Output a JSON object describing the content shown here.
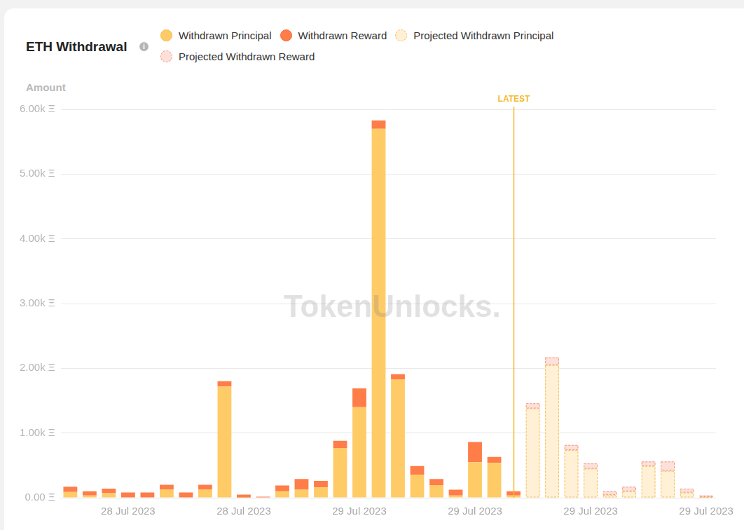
{
  "chart_data": {
    "type": "bar",
    "title": "ETH Withdrawal",
    "y_label": "Amount",
    "watermark": "TokenUnlocks.",
    "stacked": true,
    "grid": true,
    "legend": "top",
    "categories": [
      null,
      null,
      null,
      "28 Jul 2023",
      null,
      null,
      null,
      null,
      null,
      "28 Jul 2023",
      null,
      null,
      null,
      null,
      null,
      "29 Jul 2023",
      null,
      null,
      null,
      null,
      null,
      "29 Jul 2023",
      null,
      null,
      null,
      null,
      null,
      "29 Jul 2023",
      null,
      null,
      null,
      null,
      null,
      "29 Jul 2023"
    ],
    "series": [
      {
        "name": "Withdrawn Principal",
        "color": "#fecb67",
        "line_style": "solid",
        "values": [
          90,
          35,
          70,
          5,
          5,
          125,
          5,
          125,
          1720,
          2,
          0,
          100,
          125,
          160,
          770,
          1400,
          5700,
          1830,
          355,
          195,
          35,
          550,
          540,
          35,
          null,
          null,
          null,
          null,
          null,
          null,
          null,
          null,
          null,
          null
        ]
      },
      {
        "name": "Withdrawn Reward",
        "color": "#fe7d48",
        "line_style": "solid",
        "values": [
          80,
          65,
          70,
          75,
          75,
          75,
          75,
          75,
          80,
          48,
          15,
          90,
          165,
          100,
          110,
          290,
          130,
          80,
          135,
          95,
          90,
          310,
          90,
          65,
          null,
          null,
          null,
          null,
          null,
          null,
          null,
          null,
          null,
          null
        ]
      },
      {
        "name": "Projected Withdrawn Principal",
        "color": "#fff0d6",
        "line_style": "dashed",
        "values": [
          null,
          null,
          null,
          null,
          null,
          null,
          null,
          null,
          null,
          null,
          null,
          null,
          null,
          null,
          null,
          null,
          null,
          null,
          null,
          null,
          null,
          null,
          null,
          null,
          1380,
          2050,
          735,
          450,
          45,
          100,
          490,
          415,
          80,
          10
        ]
      },
      {
        "name": "Projected Withdrawn Reward",
        "color": "#fde0d9",
        "line_style": "dashed",
        "values": [
          null,
          null,
          null,
          null,
          null,
          null,
          null,
          null,
          null,
          null,
          null,
          null,
          null,
          null,
          null,
          null,
          null,
          null,
          null,
          null,
          null,
          null,
          null,
          null,
          80,
          120,
          80,
          80,
          55,
          70,
          70,
          145,
          60,
          25
        ]
      }
    ],
    "ylim": [
      0,
      6000
    ],
    "yticks": [
      {
        "value": 0,
        "label": "0.00 Ξ"
      },
      {
        "value": 1000,
        "label": "1.00k Ξ"
      },
      {
        "value": 2000,
        "label": "2.00k Ξ"
      },
      {
        "value": 3000,
        "label": "3.00k Ξ"
      },
      {
        "value": 4000,
        "label": "4.00k Ξ"
      },
      {
        "value": 5000,
        "label": "5.00k Ξ"
      },
      {
        "value": 6000,
        "label": "6.00k Ξ"
      }
    ],
    "annotations": [
      {
        "text": "LATEST",
        "x": 23
      }
    ]
  }
}
